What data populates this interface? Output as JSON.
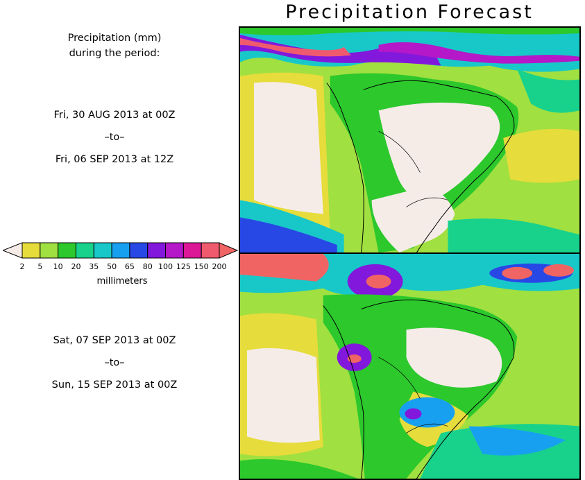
{
  "title": "Precipitation Forecast",
  "header_note": {
    "line1": "Precipitation (mm)",
    "line2": "during the period:"
  },
  "period1": {
    "start": "Fri, 30 AUG 2013 at 00Z",
    "sep": "–to–",
    "end": "Fri, 06 SEP 2013 at 12Z"
  },
  "period2": {
    "start": "Sat, 07 SEP 2013 at 00Z",
    "sep": "–to–",
    "end": "Sun, 15 SEP 2013 at 00Z"
  },
  "legend": {
    "unit": "millimeters",
    "ticks": [
      "2",
      "5",
      "10",
      "20",
      "35",
      "50",
      "65",
      "80",
      "100",
      "125",
      "150",
      "200"
    ],
    "colors": [
      "#f5ece8",
      "#e6dc3c",
      "#a0e040",
      "#2cc82c",
      "#18d28c",
      "#18c8c8",
      "#18a0f0",
      "#2848e6",
      "#8218dc",
      "#b418c8",
      "#dc1896",
      "#f05a6e",
      "#f06464"
    ]
  }
}
